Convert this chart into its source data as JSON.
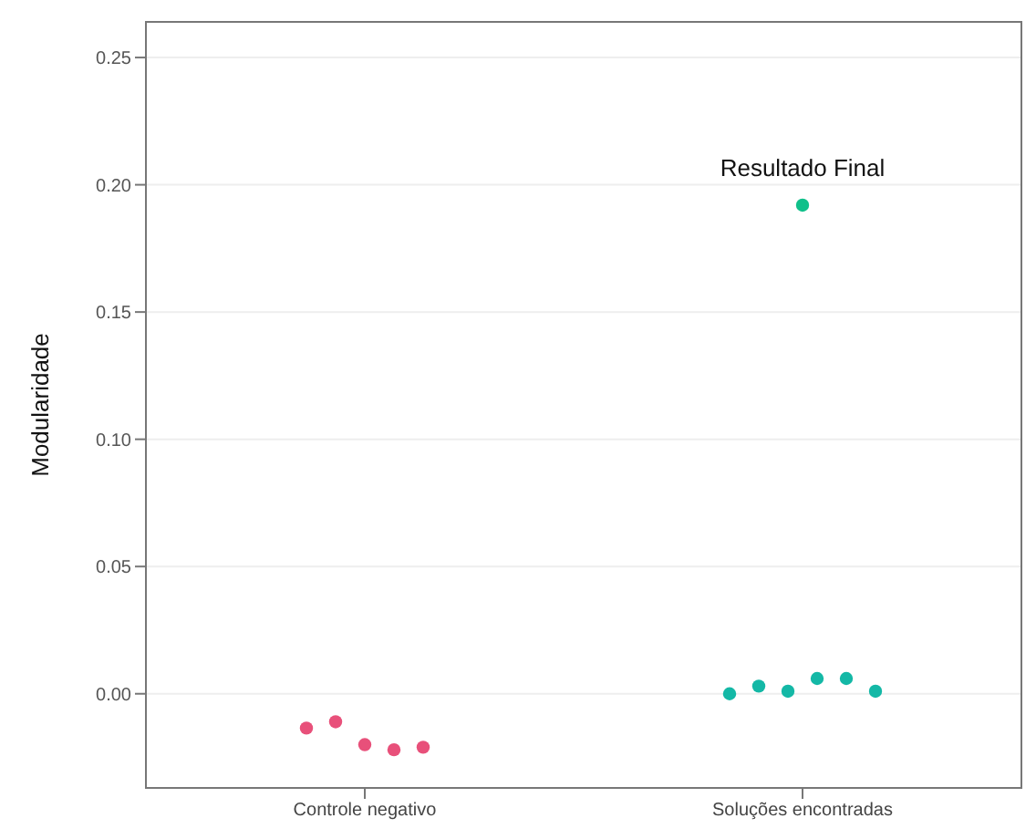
{
  "chart_data": {
    "type": "scatter",
    "ylabel": "Modularidade",
    "categories": [
      "Controle negativo",
      "Soluções encontradas"
    ],
    "series": [
      {
        "color": "#e8507a",
        "x": [
          "Controle negativo",
          "Controle negativo",
          "Controle negativo",
          "Controle negativo",
          "Controle negativo"
        ],
        "values": [
          -0.0135,
          -0.011,
          -0.02,
          -0.022,
          -0.021
        ]
      },
      {
        "color": "#14b8a6",
        "x": [
          "Soluções encontradas",
          "Soluções encontradas",
          "Soluções encontradas",
          "Soluções encontradas",
          "Soluções encontradas",
          "Soluções encontradas"
        ],
        "values": [
          0.0,
          0.003,
          0.001,
          0.006,
          0.006,
          0.001
        ]
      },
      {
        "color": "#10c08a",
        "x": [
          "Soluções encontradas"
        ],
        "values": [
          0.192
        ]
      }
    ],
    "annotations": [
      {
        "text": "Resultado Final",
        "x": "Soluções encontradas",
        "y": 0.192
      }
    ],
    "ylim": [
      -0.037,
      0.264
    ],
    "yticks": [
      {
        "value": 0,
        "label": "0.00"
      },
      {
        "value": 0.05,
        "label": "0.05"
      },
      {
        "value": 0.1,
        "label": "0.10"
      },
      {
        "value": 0.15,
        "label": "0.15"
      },
      {
        "value": 0.2,
        "label": "0.20"
      },
      {
        "value": 0.25,
        "label": "0.25"
      }
    ],
    "grid": "y",
    "marker": "circle",
    "legend": false
  }
}
